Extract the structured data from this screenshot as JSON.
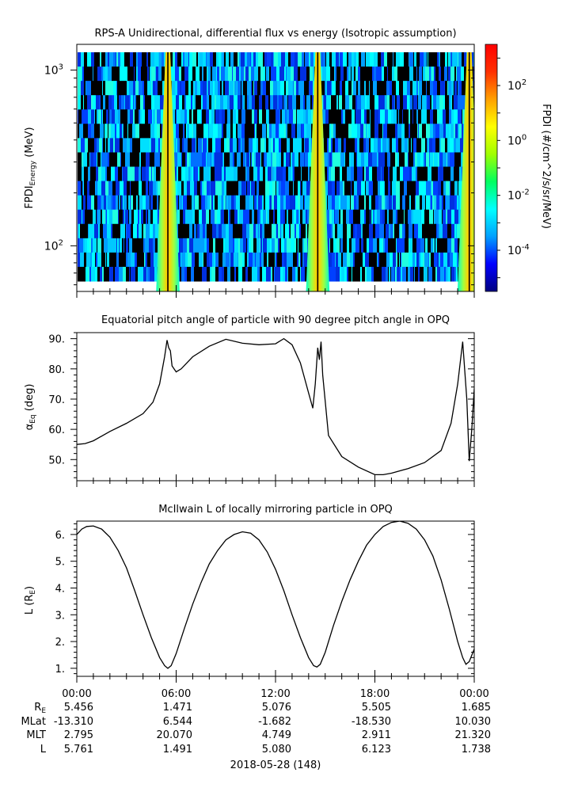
{
  "chart_data": [
    {
      "type": "heatmap",
      "title": "RPS-A Unidirectional, differential flux vs energy (Isotropic assumption)",
      "ylabel": {
        "main": "FPDI",
        "sub": "Energy",
        "unit": " (MeV)"
      },
      "y_scale": "log",
      "ylim": [
        55,
        1400
      ],
      "ytick_labels": [
        {
          "base": "10",
          "exp": "2",
          "value": 100
        },
        {
          "base": "10",
          "exp": "3",
          "value": 1000
        }
      ],
      "colorbar": {
        "label": "FPDI (#/cm^2/s/sr/MeV)",
        "scale": "log",
        "range_exp": [
          -5.5,
          3.5
        ],
        "tick_labels": [
          {
            "base": "10",
            "exp": "2",
            "value": 2
          },
          {
            "base": "10",
            "exp": "0",
            "value": 0
          },
          {
            "base": "10",
            "exp": "-2",
            "value": -2
          },
          {
            "base": "10",
            "exp": "-4",
            "value": -4
          }
        ],
        "colors": [
          "#000080",
          "#0000ff",
          "#00a0ff",
          "#00ffff",
          "#00ff60",
          "#a0ff00",
          "#ffff00",
          "#ffa000",
          "#ff3000",
          "#ff0000"
        ]
      },
      "belt_crossings_hours": [
        5.5,
        14.55,
        23.7
      ]
    },
    {
      "type": "line",
      "title": "Equatorial pitch angle of particle with 90 degree pitch angle in OPQ",
      "ylabel": {
        "main": "α",
        "sub": "Eq",
        "unit": " (deg)"
      },
      "ylim": [
        43,
        92
      ],
      "ytick_labels": [
        "90.",
        "80.",
        "70.",
        "60.",
        "50."
      ],
      "ytick_values": [
        90,
        80,
        70,
        60,
        50
      ],
      "x_hours": [
        0,
        0.5,
        1,
        2,
        3,
        4,
        4.6,
        5,
        5.3,
        5.45,
        5.55,
        5.65,
        5.75,
        6.0,
        6.3,
        7,
        8,
        9,
        10,
        11,
        12,
        12.5,
        13.0,
        13.5,
        14.0,
        14.25,
        14.4,
        14.55,
        14.65,
        14.75,
        14.85,
        15.2,
        16,
        17,
        18,
        18.5,
        19,
        20,
        21,
        22,
        22.6,
        23.0,
        23.3,
        23.55,
        23.7,
        23.85,
        24.0
      ],
      "y_values": [
        55,
        55.3,
        56.2,
        59.3,
        62,
        65.2,
        69,
        75,
        84,
        89.5,
        87,
        86,
        81,
        79,
        80,
        84,
        87.5,
        89.8,
        88.5,
        88,
        88.3,
        90,
        88,
        82,
        72,
        67,
        75,
        87,
        83,
        89,
        78,
        58,
        51,
        47.5,
        45,
        45,
        45.5,
        47,
        49,
        53,
        62,
        75,
        89,
        70,
        49.5,
        60,
        73.5
      ]
    },
    {
      "type": "line",
      "title": "McIlwain L of locally mirroring particle in OPQ",
      "ylabel": {
        "main": "L (R",
        "sub": "E",
        "unit": ")"
      },
      "ylim": [
        0.7,
        6.5
      ],
      "ytick_labels": [
        "6.",
        "5.",
        "4.",
        "3.",
        "2.",
        "1."
      ],
      "ytick_values": [
        6,
        5,
        4,
        3,
        2,
        1
      ],
      "x_hours": [
        0,
        0.3,
        0.6,
        1.0,
        1.5,
        2.0,
        2.5,
        3.0,
        3.5,
        4.0,
        4.5,
        5.0,
        5.3,
        5.5,
        5.7,
        6.0,
        6.5,
        7.0,
        7.5,
        8.0,
        8.5,
        9.0,
        9.5,
        10.0,
        10.5,
        11.0,
        11.5,
        12.0,
        12.5,
        13.0,
        13.5,
        14.0,
        14.3,
        14.5,
        14.7,
        15.0,
        15.5,
        16.0,
        16.5,
        17.0,
        17.5,
        18.0,
        18.5,
        19.0,
        19.5,
        20.0,
        20.5,
        21.0,
        21.5,
        22.0,
        22.5,
        23.0,
        23.3,
        23.5,
        23.7,
        24.0
      ],
      "y_values": [
        6.0,
        6.2,
        6.3,
        6.32,
        6.2,
        5.9,
        5.4,
        4.75,
        3.9,
        3.0,
        2.15,
        1.4,
        1.1,
        1.0,
        1.1,
        1.55,
        2.5,
        3.4,
        4.2,
        4.9,
        5.4,
        5.8,
        6.0,
        6.1,
        6.05,
        5.8,
        5.35,
        4.7,
        3.9,
        3.0,
        2.15,
        1.4,
        1.1,
        1.05,
        1.15,
        1.6,
        2.6,
        3.5,
        4.3,
        5.0,
        5.6,
        6.0,
        6.3,
        6.45,
        6.5,
        6.42,
        6.2,
        5.8,
        5.2,
        4.3,
        3.2,
        2.0,
        1.4,
        1.15,
        1.25,
        1.72
      ]
    }
  ],
  "x_axis": {
    "tick_labels": [
      "00:00",
      "06:00",
      "12:00",
      "18:00",
      "00:00"
    ],
    "tick_hours": [
      0,
      6,
      12,
      18,
      24
    ],
    "minor_per_major": 6,
    "date_label": "2018-05-28 (148)"
  },
  "ephemeris": {
    "row_labels": [
      {
        "main": "R",
        "sub": "E"
      },
      {
        "main": "MLat",
        "sub": ""
      },
      {
        "main": "MLT",
        "sub": ""
      },
      {
        "main": "L",
        "sub": ""
      }
    ],
    "values": [
      [
        "5.456",
        "1.471",
        "5.076",
        "5.505",
        "1.685"
      ],
      [
        "-13.310",
        "6.544",
        "-1.682",
        "-18.530",
        "10.030"
      ],
      [
        "2.795",
        "20.070",
        "4.749",
        "2.911",
        "21.320"
      ],
      [
        "5.761",
        "1.491",
        "5.080",
        "6.123",
        "1.738"
      ]
    ]
  }
}
